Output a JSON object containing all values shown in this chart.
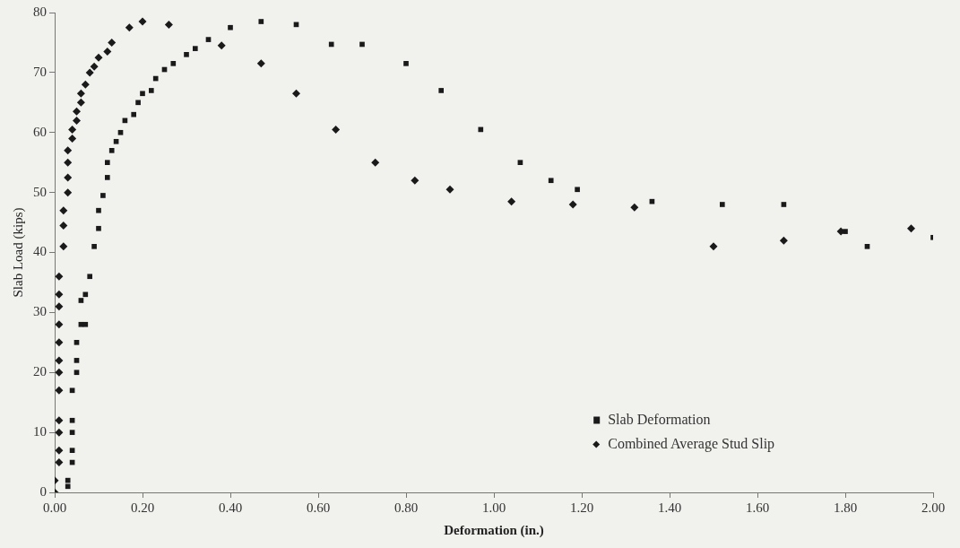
{
  "chart_data": {
    "type": "scatter",
    "xlabel": "Deformation (in.)",
    "ylabel": "Slab Load (kips)",
    "xlim": [
      0,
      2
    ],
    "xticks": [
      {
        "value": 0,
        "label": "0.00"
      },
      {
        "value": 0.2,
        "label": "0.20"
      },
      {
        "value": 0.4,
        "label": "0.40"
      },
      {
        "value": 0.6,
        "label": "0.60"
      },
      {
        "value": 0.8,
        "label": "0.80"
      },
      {
        "value": 1,
        "label": "1.00"
      },
      {
        "value": 1.2,
        "label": "1.20"
      },
      {
        "value": 1.4,
        "label": "1.40"
      },
      {
        "value": 1.6,
        "label": "1.60"
      },
      {
        "value": 1.8,
        "label": "1.80"
      },
      {
        "value": 2,
        "label": "2.00"
      }
    ],
    "ylim": [
      0,
      80
    ],
    "yticks": [
      0,
      10,
      20,
      30,
      40,
      50,
      60,
      70,
      80
    ],
    "grid": false,
    "legend": "bottom right",
    "series": [
      {
        "name": "Slab Deformation",
        "color": "#1a1a1a",
        "marker": "square",
        "x": [
          0.03,
          0.03,
          0.04,
          0.04,
          0.04,
          0.04,
          0.04,
          0.05,
          0.05,
          0.05,
          0.06,
          0.07,
          0.06,
          0.07,
          0.08,
          0.09,
          0.1,
          0.1,
          0.11,
          0.12,
          0.12,
          0.13,
          0.14,
          0.15,
          0.16,
          0.18,
          0.19,
          0.2,
          0.22,
          0.23,
          0.25,
          0.27,
          0.3,
          0.32,
          0.35,
          0.4,
          0.47,
          0.55,
          0.63,
          0.7,
          0.8,
          0.88,
          0.97,
          1.06,
          1.13,
          1.19,
          1.36,
          1.52,
          1.66,
          1.8,
          1.85,
          2.0
        ],
        "values": [
          1,
          2,
          5,
          7,
          10,
          12,
          17,
          20,
          22,
          25,
          28,
          28,
          32,
          33,
          36,
          41,
          44,
          47,
          49.5,
          52.5,
          55,
          57,
          58.5,
          60,
          62,
          63,
          65,
          66.5,
          67,
          69,
          70.5,
          71.5,
          73,
          74,
          75.5,
          77.5,
          78.5,
          78,
          74.7,
          74.7,
          71.5,
          67,
          60.5,
          55,
          52,
          50.5,
          48.5,
          48,
          48,
          43.5,
          41,
          42.5
        ]
      },
      {
        "name": "Combined Average Stud Slip",
        "color": "#1a1a1a",
        "marker": "diamond",
        "x": [
          0,
          0,
          0.01,
          0.01,
          0.01,
          0.01,
          0.01,
          0.01,
          0.01,
          0.01,
          0.01,
          0.01,
          0.01,
          0.01,
          0.02,
          0.02,
          0.02,
          0.03,
          0.03,
          0.03,
          0.03,
          0.04,
          0.04,
          0.05,
          0.05,
          0.06,
          0.06,
          0.07,
          0.08,
          0.09,
          0.1,
          0.12,
          0.13,
          0.17,
          0.2,
          0.26,
          0.38,
          0.47,
          0.55,
          0.64,
          0.73,
          0.82,
          0.9,
          1.04,
          1.18,
          1.32,
          1.5,
          1.66,
          1.79,
          1.95
        ],
        "values": [
          0,
          2,
          5,
          7,
          10,
          12,
          17,
          20,
          22,
          25,
          28,
          31,
          33,
          36,
          41,
          44.5,
          47,
          50,
          52.5,
          55,
          57,
          59,
          60.5,
          62,
          63.5,
          65,
          66.5,
          68,
          70,
          71,
          72.5,
          73.5,
          75,
          77.5,
          78.5,
          78,
          74.5,
          71.5,
          66.5,
          60.5,
          55,
          52,
          50.5,
          48.5,
          48,
          47.5,
          41,
          42,
          43.5,
          44
        ]
      }
    ]
  }
}
